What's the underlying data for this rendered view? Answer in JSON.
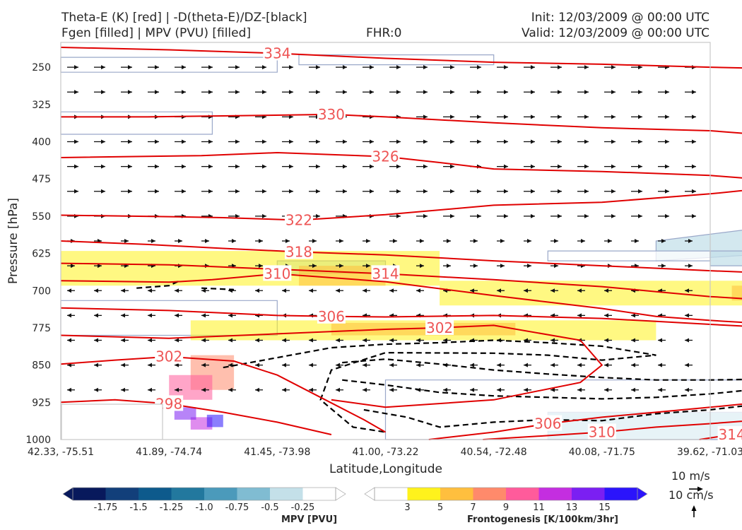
{
  "header": {
    "title_line1_left": "Theta-E (K) [red] | -D(theta-E)/DZ-[black]",
    "title_line2_left": "Fgen [filled] | MPV (PVU) [filled]",
    "title_center": "FHR:0",
    "init_label": "Init: 12/03/2009 @ 00:00 UTC",
    "valid_label": "Valid: 12/03/2009 @ 00:00 UTC"
  },
  "chart_data": {
    "type": "contour",
    "ylabel": "Pressure [hPa]",
    "xlabel": "Latitude,Longitude",
    "y_scale": "inverted",
    "ylim": [
      1000,
      200
    ],
    "y_ticks": [
      250,
      325,
      400,
      475,
      550,
      625,
      700,
      775,
      850,
      925,
      1000
    ],
    "x_ticks": [
      "42.33, -75.51",
      "41.89, -74.74",
      "41.45, -73.98",
      "41.00, -73.22",
      "40.54, -72.48",
      "40.08, -71.75",
      "39.62, -71.03"
    ],
    "theta_e_contours": [
      {
        "label": "334",
        "values": [
          [
            0,
            210
          ],
          [
            1,
            215
          ],
          [
            2,
            222
          ],
          [
            3,
            232
          ],
          [
            4,
            240
          ],
          [
            5,
            244
          ],
          [
            6,
            250
          ],
          [
            6.6,
            253
          ]
        ]
      },
      {
        "label": "330",
        "values": [
          [
            0,
            350
          ],
          [
            0.8,
            350
          ],
          [
            1.5,
            348
          ],
          [
            2.5,
            345
          ],
          [
            3,
            350
          ],
          [
            4,
            362
          ],
          [
            5,
            372
          ],
          [
            6,
            378
          ],
          [
            6.6,
            388
          ]
        ]
      },
      {
        "label": "326",
        "values": [
          [
            0,
            432
          ],
          [
            1.3,
            428
          ],
          [
            2,
            422
          ],
          [
            3,
            430
          ],
          [
            3.5,
            442
          ],
          [
            4,
            455
          ],
          [
            5,
            460
          ],
          [
            6,
            468
          ],
          [
            6.6,
            478
          ]
        ]
      },
      {
        "label": "322",
        "values": [
          [
            0,
            548
          ],
          [
            1,
            551
          ],
          [
            1.5,
            553
          ],
          [
            2.2,
            558
          ],
          [
            3,
            547
          ],
          [
            4,
            528
          ],
          [
            5,
            522
          ],
          [
            6,
            505
          ],
          [
            6.6,
            492
          ]
        ]
      },
      {
        "label": "318",
        "values": [
          [
            0,
            600
          ],
          [
            0.8,
            607
          ],
          [
            1.5,
            615
          ],
          [
            2.2,
            622
          ],
          [
            3,
            628
          ],
          [
            4,
            640
          ],
          [
            5,
            650
          ],
          [
            6,
            660
          ],
          [
            6.6,
            665
          ]
        ]
      },
      {
        "label": "314",
        "values": [
          [
            0,
            645
          ],
          [
            1,
            648
          ],
          [
            2,
            657
          ],
          [
            3,
            666
          ],
          [
            4,
            678
          ],
          [
            5,
            692
          ],
          [
            5.5,
            702
          ],
          [
            6,
            712
          ],
          [
            6.6,
            720
          ]
        ]
      },
      {
        "label": "310",
        "values": [
          [
            0,
            680
          ],
          [
            1,
            683
          ],
          [
            1.4,
            678
          ],
          [
            2,
            666
          ],
          [
            3,
            682
          ],
          [
            4,
            710
          ],
          [
            5,
            736
          ],
          [
            5.5,
            752
          ],
          [
            6,
            760
          ],
          [
            6.6,
            768
          ]
        ]
      },
      {
        "label": "306",
        "values": [
          [
            0,
            735
          ],
          [
            1,
            740
          ],
          [
            2,
            750
          ],
          [
            2.5,
            752
          ],
          [
            3,
            753
          ],
          [
            4,
            750
          ],
          [
            5,
            756
          ],
          [
            5.5,
            762
          ],
          [
            6,
            768
          ],
          [
            6.6,
            775
          ]
        ]
      },
      {
        "label": "302",
        "values": [
          [
            0,
            790
          ],
          [
            1,
            796
          ],
          [
            2,
            787
          ],
          [
            3,
            778
          ],
          [
            3.5,
            775
          ],
          [
            4,
            770
          ],
          [
            4.8,
            800
          ],
          [
            5,
            850
          ],
          [
            4.8,
            885
          ],
          [
            4,
            920
          ],
          [
            3,
            935
          ],
          [
            2.5,
            920
          ]
        ]
      },
      {
        "label": "302",
        "values": [
          [
            0,
            848
          ],
          [
            0.5,
            840
          ],
          [
            1,
            833
          ],
          [
            1.6,
            842
          ],
          [
            2,
            870
          ],
          [
            2.4,
            915
          ],
          [
            2.8,
            960
          ],
          [
            3,
            985
          ]
        ]
      },
      {
        "label": "298",
        "values": [
          [
            0,
            925
          ],
          [
            0.5,
            920
          ],
          [
            1,
            928
          ],
          [
            1.5,
            945
          ],
          [
            2,
            965
          ],
          [
            2.5,
            990
          ]
        ]
      },
      {
        "label": "306",
        "values": [
          [
            3.4,
            1000
          ],
          [
            4,
            985
          ],
          [
            4.5,
            968
          ],
          [
            5,
            955
          ],
          [
            5.5,
            945
          ],
          [
            6,
            935
          ],
          [
            6.6,
            922
          ]
        ]
      },
      {
        "label": "310",
        "values": [
          [
            3.9,
            1000
          ],
          [
            4.5,
            992
          ],
          [
            5,
            985
          ],
          [
            5.5,
            975
          ],
          [
            6,
            968
          ],
          [
            6.6,
            958
          ]
        ]
      },
      {
        "label": "314",
        "values": [
          [
            5.9,
            1000
          ],
          [
            6.2,
            990
          ],
          [
            6.6,
            982
          ]
        ]
      }
    ],
    "stability_dashed_contours": [
      [
        [
          1.5,
          855
        ],
        [
          2,
          835
        ],
        [
          2.5,
          815
        ],
        [
          3,
          808
        ],
        [
          3.5,
          805
        ],
        [
          4,
          800
        ],
        [
          4.5,
          805
        ],
        [
          5,
          812
        ],
        [
          5.5,
          830
        ],
        [
          5,
          840
        ],
        [
          4.5,
          830
        ],
        [
          4,
          826
        ],
        [
          3,
          825
        ],
        [
          2.5,
          860
        ],
        [
          2.4,
          920
        ],
        [
          2.7,
          975
        ],
        [
          3,
          985
        ]
      ],
      [
        [
          2.6,
          845
        ],
        [
          3,
          838
        ],
        [
          3.5,
          848
        ],
        [
          4,
          860
        ],
        [
          4.5,
          868
        ],
        [
          5,
          875
        ],
        [
          5.5,
          880
        ],
        [
          6,
          880
        ],
        [
          6.6,
          878
        ]
      ],
      [
        [
          2.6,
          880
        ],
        [
          3,
          890
        ],
        [
          3.5,
          905
        ],
        [
          4,
          912
        ],
        [
          4.5,
          915
        ],
        [
          5,
          918
        ],
        [
          5.5,
          915
        ],
        [
          6,
          908
        ],
        [
          6.6,
          895
        ]
      ],
      [
        [
          2.8,
          940
        ],
        [
          3.2,
          955
        ],
        [
          3.5,
          975
        ],
        [
          4,
          965
        ],
        [
          4.5,
          960
        ],
        [
          5,
          962
        ],
        [
          5.5,
          948
        ],
        [
          6,
          940
        ],
        [
          6.6,
          925
        ]
      ],
      [
        [
          0.7,
          695
        ],
        [
          1,
          690
        ],
        [
          1.1,
          680
        ]
      ],
      [
        [
          1.3,
          695
        ],
        [
          1.6,
          698
        ]
      ]
    ],
    "negative_mpv_regions": [
      {
        "value": -0.75,
        "values": [
          [
            4.5,
            945
          ],
          [
            6.6,
            945
          ],
          [
            6.6,
            1000
          ],
          [
            4.5,
            1000
          ]
        ]
      },
      {
        "value": -0.25,
        "values": [
          [
            3,
            880
          ],
          [
            6.6,
            880
          ],
          [
            6.6,
            1000
          ],
          [
            3,
            1000
          ]
        ]
      },
      {
        "value": -0.5,
        "values": [
          [
            5.5,
            600
          ],
          [
            6.6,
            570
          ],
          [
            6.6,
            625
          ],
          [
            5.5,
            640
          ]
        ]
      },
      {
        "value": -0.25,
        "values": [
          [
            0,
            230
          ],
          [
            2,
            230
          ],
          [
            2,
            260
          ],
          [
            0,
            260
          ]
        ]
      },
      {
        "value": -0.25,
        "values": [
          [
            2.2,
            225
          ],
          [
            4,
            225
          ],
          [
            4,
            245
          ],
          [
            2.2,
            245
          ]
        ]
      },
      {
        "value": -0.25,
        "values": [
          [
            0,
            340
          ],
          [
            1.4,
            340
          ],
          [
            1.4,
            385
          ],
          [
            0,
            385
          ]
        ]
      },
      {
        "value": -0.25,
        "values": [
          [
            4.5,
            620
          ],
          [
            6,
            620
          ],
          [
            6,
            640
          ],
          [
            4.5,
            640
          ]
        ]
      },
      {
        "value": -0.5,
        "values": [
          [
            2,
            640
          ],
          [
            3,
            640
          ],
          [
            3,
            665
          ],
          [
            2,
            665
          ]
        ]
      },
      {
        "value": -0.25,
        "values": [
          [
            0,
            720
          ],
          [
            2,
            720
          ],
          [
            2,
            790
          ],
          [
            0,
            790
          ]
        ]
      },
      {
        "value": -0.5,
        "values": [
          [
            6,
            620
          ],
          [
            6.6,
            620
          ],
          [
            6.6,
            650
          ],
          [
            6,
            650
          ]
        ]
      }
    ],
    "frontogenesis_regions": [
      {
        "value": 3,
        "values": [
          [
            0,
            620
          ],
          [
            3.5,
            620
          ],
          [
            3.5,
            690
          ],
          [
            0,
            690
          ]
        ]
      },
      {
        "value": 3,
        "values": [
          [
            1.2,
            760
          ],
          [
            5.5,
            760
          ],
          [
            5.5,
            800
          ],
          [
            1.2,
            800
          ]
        ]
      },
      {
        "value": 3,
        "values": [
          [
            3.5,
            680
          ],
          [
            6.6,
            680
          ],
          [
            6.6,
            730
          ],
          [
            3.5,
            730
          ]
        ]
      },
      {
        "value": 5,
        "values": [
          [
            2.2,
            650
          ],
          [
            3,
            650
          ],
          [
            3,
            690
          ],
          [
            2.2,
            690
          ]
        ]
      },
      {
        "value": 5,
        "values": [
          [
            2.5,
            765
          ],
          [
            4.2,
            765
          ],
          [
            4.2,
            790
          ],
          [
            2.5,
            790
          ]
        ]
      },
      {
        "value": 5,
        "values": [
          [
            6.2,
            690
          ],
          [
            6.6,
            690
          ],
          [
            6.6,
            720
          ],
          [
            6.2,
            720
          ]
        ]
      },
      {
        "value": 7,
        "values": [
          [
            1.2,
            830
          ],
          [
            1.6,
            830
          ],
          [
            1.6,
            900
          ],
          [
            1.2,
            900
          ]
        ]
      },
      {
        "value": 9,
        "values": [
          [
            1,
            870
          ],
          [
            1.4,
            870
          ],
          [
            1.4,
            920
          ],
          [
            1,
            920
          ]
        ]
      },
      {
        "value": 11,
        "values": [
          [
            1.2,
            955
          ],
          [
            1.4,
            955
          ],
          [
            1.4,
            980
          ],
          [
            1.2,
            980
          ]
        ]
      },
      {
        "value": 13,
        "values": [
          [
            1.05,
            935
          ],
          [
            1.25,
            935
          ],
          [
            1.25,
            960
          ],
          [
            1.05,
            960
          ]
        ]
      },
      {
        "value": 15,
        "values": [
          [
            1.35,
            950
          ],
          [
            1.5,
            950
          ],
          [
            1.5,
            975
          ],
          [
            1.35,
            975
          ]
        ]
      }
    ],
    "colorbar_mpv": {
      "label": "MPV [PVU]",
      "ticks": [
        "-1.75",
        "-1.5",
        "-1.25",
        "-1.0",
        "-0.75",
        "-0.5",
        "-0.25"
      ],
      "colors": [
        "#08195c",
        "#123f7a",
        "#0d5a8c",
        "#22789e",
        "#4b9abb",
        "#80bcd2",
        "#c4e0e9",
        "#ffffff"
      ]
    },
    "colorbar_fgen": {
      "label": "Frontogenesis [K/100km/3hr]",
      "ticks": [
        "3",
        "5",
        "7",
        "9",
        "11",
        "13",
        "15"
      ],
      "colors": [
        "#ffffff",
        "#fff21c",
        "#ffbf3e",
        "#ff8a6b",
        "#ff5b9b",
        "#c42ee0",
        "#7b1ff2",
        "#2b14fb"
      ]
    },
    "wind_reference": {
      "label_1": "10 m/s",
      "label_2": "10 cm/s"
    }
  }
}
